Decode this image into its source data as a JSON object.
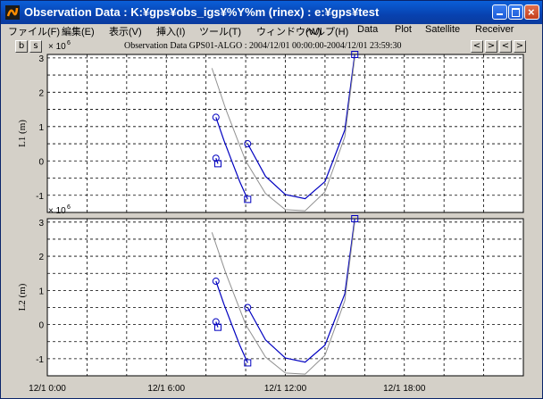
{
  "window": {
    "title": "Observation Data : K:¥gps¥obs_igs¥%Y%m (rinex) : e:¥gps¥test",
    "buttons": {
      "minimize": "_",
      "maximize": "□",
      "close": "×"
    }
  },
  "menu": [
    "ファイル(F)",
    "編集(E)",
    "表示(V)",
    "挿入(I)",
    "ツール(T)",
    "ウィンドウ(W)",
    "ヘルプ(H)",
    "Data",
    "Plot",
    "Satellite",
    "Receiver"
  ],
  "toolbar": {
    "left_buttons": [
      "b",
      "s"
    ],
    "nav_buttons": [
      "<",
      ">",
      "<",
      ">"
    ]
  },
  "chart_data": {
    "type": "line",
    "title": "Observation Data GPS01-ALGO : 2004/12/01 00:00:00-2004/12/01 23:59:30",
    "x_range_hours": [
      0,
      24
    ],
    "x_ticks": [
      "12/1  0:00",
      "12/1  6:00",
      "12/1 12:00",
      "12/1 18:00"
    ],
    "grid": true,
    "panels": [
      {
        "ylabel": "L1 (m)",
        "exponent_label": "× 10",
        "exponent": "6",
        "ylim": [
          -1.5,
          3.1
        ],
        "yticks": [
          "3",
          "2",
          "1",
          "0",
          "-1"
        ],
        "ytick_values": [
          3,
          2,
          1,
          0,
          -1
        ],
        "series": [
          {
            "color": "#0000c0",
            "x": [
              8.5,
              8.9,
              9.3,
              9.7,
              10.1
            ],
            "y": [
              1.27,
              0.6,
              0.0,
              -0.6,
              -1.12
            ],
            "markers": {
              "start": "circle",
              "end": "square"
            }
          },
          {
            "color": "#0000c0",
            "x": [
              10.1,
              11.0,
              12.0,
              13.0,
              14.0,
              15.0,
              15.5
            ],
            "y": [
              0.5,
              -0.45,
              -0.98,
              -1.1,
              -0.6,
              0.9,
              3.1
            ],
            "markers": {
              "start": "circle",
              "end": "square"
            }
          },
          {
            "color": "#0000c0",
            "x": [
              8.5,
              8.6
            ],
            "y": [
              0.08,
              -0.08
            ],
            "markers": {
              "start": "circle",
              "end": "square"
            }
          },
          {
            "color": "#909090",
            "x": [
              8.3,
              9.0,
              10.0,
              11.0,
              12.0,
              13.0,
              14.0,
              15.0,
              15.5
            ],
            "y": [
              2.7,
              1.5,
              0.0,
              -0.95,
              -1.42,
              -1.45,
              -0.9,
              0.7,
              3.0
            ]
          }
        ]
      },
      {
        "ylabel": "L2 (m)",
        "exponent_label": "× 10",
        "exponent": "6",
        "ylim": [
          -1.5,
          3.1
        ],
        "yticks": [
          "3",
          "2",
          "1",
          "0",
          "-1"
        ],
        "ytick_values": [
          3,
          2,
          1,
          0,
          -1
        ],
        "series": [
          {
            "color": "#0000c0",
            "x": [
              8.5,
              8.9,
              9.3,
              9.7,
              10.1
            ],
            "y": [
              1.27,
              0.6,
              0.0,
              -0.6,
              -1.12
            ],
            "markers": {
              "start": "circle",
              "end": "square"
            }
          },
          {
            "color": "#0000c0",
            "x": [
              10.1,
              11.0,
              12.0,
              13.0,
              14.0,
              15.0,
              15.5
            ],
            "y": [
              0.5,
              -0.45,
              -0.98,
              -1.1,
              -0.6,
              0.9,
              3.1
            ],
            "markers": {
              "start": "circle",
              "end": "square"
            }
          },
          {
            "color": "#0000c0",
            "x": [
              8.5,
              8.6
            ],
            "y": [
              0.08,
              -0.08
            ],
            "markers": {
              "start": "circle",
              "end": "square"
            }
          },
          {
            "color": "#909090",
            "x": [
              8.3,
              9.0,
              10.0,
              11.0,
              12.0,
              13.0,
              14.0,
              15.0,
              15.5
            ],
            "y": [
              2.7,
              1.5,
              0.0,
              -0.95,
              -1.42,
              -1.45,
              -0.9,
              0.7,
              3.0
            ]
          }
        ]
      }
    ]
  }
}
